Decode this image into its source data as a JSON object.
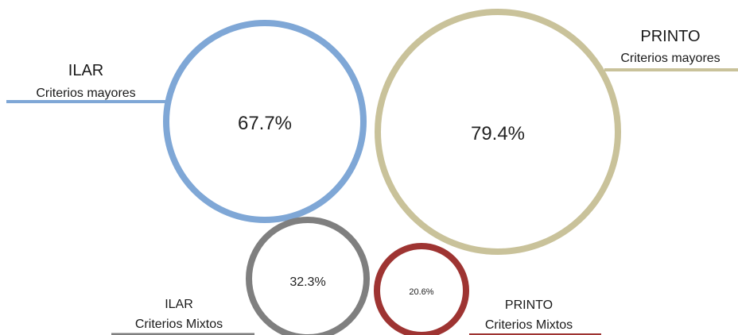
{
  "chart_data": {
    "type": "bubble",
    "series": [
      {
        "group": "ILAR",
        "category": "Criterios mayores",
        "value": 67.7,
        "value_label": "67.7%",
        "color": "#7FA7D6"
      },
      {
        "group": "PRINTO",
        "category": "Criterios mayores",
        "value": 79.4,
        "value_label": "79.4%",
        "color": "#C9C29A"
      },
      {
        "group": "ILAR",
        "category": "Criterios Mixtos",
        "value": 32.3,
        "value_label": "32.3%",
        "color": "#7F7F7F"
      },
      {
        "group": "PRINTO",
        "category": "Criterios Mixtos",
        "value": 20.6,
        "value_label": "20.6%",
        "color": "#9E3432",
        "value_label_color": "#1F3A6E"
      }
    ]
  }
}
